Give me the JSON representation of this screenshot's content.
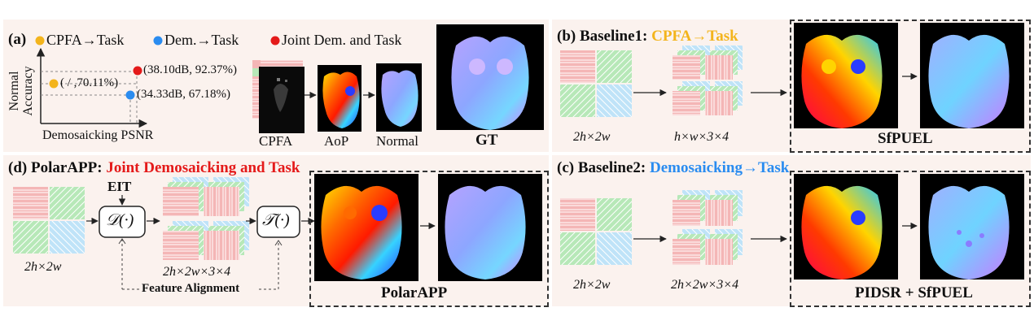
{
  "panel_a": {
    "label": "(a)",
    "legend": [
      {
        "text": "CPFA→Task",
        "color": "#f3b41c"
      },
      {
        "text": "Dem.→Task",
        "color": "#2a8cf0"
      },
      {
        "text": "Joint Dem. and Task",
        "color": "#e41a1a"
      }
    ],
    "y_axis_label_line1": "Normal",
    "y_axis_label_line2": "Accuracy",
    "x_axis_label": "Demosaicking PSNR",
    "points": [
      {
        "label": "(38.10dB, 92.37%)",
        "psnr_db": 38.1,
        "accuracy_pct": 92.37,
        "color": "#e41a1a"
      },
      {
        "label": "( / ,70.11%)",
        "psnr_db": null,
        "accuracy_pct": 70.11,
        "color": "#f3b41c"
      },
      {
        "label": "(34.33dB, 67.18%)",
        "psnr_db": 34.33,
        "accuracy_pct": 67.18,
        "color": "#2a8cf0"
      }
    ],
    "pipeline": [
      "CPFA",
      "AoP",
      "Normal"
    ],
    "gt_label": "GT"
  },
  "panel_b": {
    "title_prefix": "(b) Baseline1: ",
    "title_accent": "CPFA→Task",
    "accent_color": "#f3b41c",
    "dim1": "2h×2w",
    "dim2": "h×w×3×4",
    "box_label": "SfPUEL"
  },
  "panel_c": {
    "title_prefix": "(c) Baseline2: ",
    "title_accent": "Demosaicking→Task",
    "accent_color": "#2a8cf0",
    "dim1": "2h×2w",
    "dim2": "2h×2w×3×4",
    "box_label": "PIDSR + SfPUEL"
  },
  "panel_d": {
    "title_prefix": "(d) PolarAPP: ",
    "title_accent": "Joint Demosaicking and Task",
    "accent_color": "#e41a1a",
    "eit": "EIT",
    "d_op": "𝒟(·)",
    "t_op": "𝒯(·)",
    "dim1": "2h×2w",
    "dim2": "2h×2w×3×4",
    "feature_alignment": "Feature Alignment",
    "box_label": "PolarAPP"
  }
}
